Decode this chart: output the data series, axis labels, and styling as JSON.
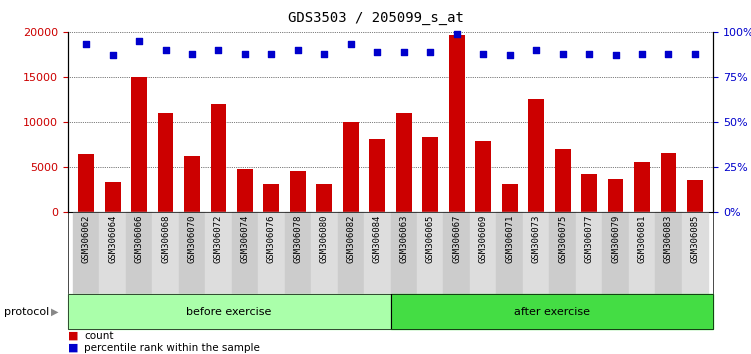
{
  "title": "GDS3503 / 205099_s_at",
  "categories": [
    "GSM306062",
    "GSM306064",
    "GSM306066",
    "GSM306068",
    "GSM306070",
    "GSM306072",
    "GSM306074",
    "GSM306076",
    "GSM306078",
    "GSM306080",
    "GSM306082",
    "GSM306084",
    "GSM306063",
    "GSM306065",
    "GSM306067",
    "GSM306069",
    "GSM306071",
    "GSM306073",
    "GSM306075",
    "GSM306077",
    "GSM306079",
    "GSM306081",
    "GSM306083",
    "GSM306085"
  ],
  "bar_values": [
    6500,
    3400,
    15000,
    11000,
    6300,
    12000,
    4800,
    3200,
    4600,
    3100,
    10000,
    8100,
    11000,
    8300,
    19700,
    7900,
    3200,
    12600,
    7000,
    4200,
    3700,
    5600,
    6600,
    3600
  ],
  "percentile_values": [
    93,
    87,
    95,
    90,
    88,
    90,
    88,
    88,
    90,
    88,
    93,
    89,
    89,
    89,
    99,
    88,
    87,
    90,
    88,
    88,
    87,
    88,
    88,
    88
  ],
  "bar_color": "#cc0000",
  "dot_color": "#0000cc",
  "ylim_left": [
    0,
    20000
  ],
  "ylim_right": [
    0,
    100
  ],
  "yticks_left": [
    0,
    5000,
    10000,
    15000,
    20000
  ],
  "yticks_right": [
    0,
    25,
    50,
    75,
    100
  ],
  "before_exercise_count": 12,
  "after_exercise_count": 12,
  "plot_bg": "#ffffff",
  "group_before_color": "#aaffaa",
  "group_after_color": "#44dd44",
  "group_before_label": "before exercise",
  "group_after_label": "after exercise",
  "protocol_label": "protocol",
  "legend_count_label": "count",
  "legend_percentile_label": "percentile rank within the sample",
  "xtick_bg": "#d4d4d4"
}
